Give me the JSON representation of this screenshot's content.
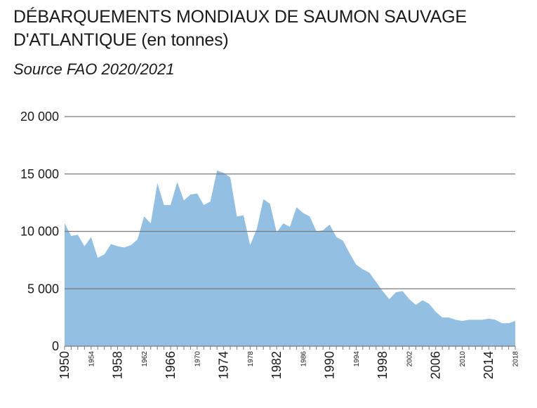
{
  "header": {
    "title_line1": "DÉBARQUEMENTS MONDIAUX DE SAUMON SAUVAGE",
    "title_line2": "D'ATLANTIQUE (en tonnes)",
    "source": "Source FAO 2020/2021"
  },
  "colors": {
    "area": "#93bfe2",
    "grid": "#7a7a7a",
    "text": "#1a1a1a"
  },
  "chart_data": {
    "type": "area",
    "title": "DÉBARQUEMENTS MONDIAUX DE SAUMON SAUVAGE D'ATLANTIQUE (en tonnes)",
    "subtitle": "Source FAO 2020/2021",
    "xlabel": "",
    "ylabel": "",
    "xlim": [
      1950,
      2018
    ],
    "ylim": [
      0,
      20000
    ],
    "grid": true,
    "y_ticks": [
      {
        "value": 0,
        "label": "0"
      },
      {
        "value": 5000,
        "label": "5 000"
      },
      {
        "value": 10000,
        "label": "10 000"
      },
      {
        "value": 15000,
        "label": "15 000"
      },
      {
        "value": 20000,
        "label": "20 000"
      }
    ],
    "x_ticks": [
      {
        "value": 1950,
        "label": "1950",
        "size": "large"
      },
      {
        "value": 1954,
        "label": "1954",
        "size": "small"
      },
      {
        "value": 1958,
        "label": "1958",
        "size": "large"
      },
      {
        "value": 1962,
        "label": "1962",
        "size": "small"
      },
      {
        "value": 1966,
        "label": "1966",
        "size": "large"
      },
      {
        "value": 1970,
        "label": "1970",
        "size": "small"
      },
      {
        "value": 1974,
        "label": "1974",
        "size": "large"
      },
      {
        "value": 1978,
        "label": "1978",
        "size": "small"
      },
      {
        "value": 1982,
        "label": "1982",
        "size": "large"
      },
      {
        "value": 1986,
        "label": "1986",
        "size": "small"
      },
      {
        "value": 1990,
        "label": "1990",
        "size": "large"
      },
      {
        "value": 1994,
        "label": "1994",
        "size": "small"
      },
      {
        "value": 1998,
        "label": "1998",
        "size": "large"
      },
      {
        "value": 2002,
        "label": "2002",
        "size": "small"
      },
      {
        "value": 2006,
        "label": "2006",
        "size": "large"
      },
      {
        "value": 2010,
        "label": "2010",
        "size": "small"
      },
      {
        "value": 2014,
        "label": "2014",
        "size": "large"
      },
      {
        "value": 2018,
        "label": "2018",
        "size": "small"
      }
    ],
    "series": [
      {
        "x": [
          1950,
          1951,
          1952,
          1953,
          1954,
          1955,
          1956,
          1957,
          1958,
          1959,
          1960,
          1961,
          1962,
          1963,
          1964,
          1965,
          1966,
          1967,
          1968,
          1969,
          1970,
          1971,
          1972,
          1973,
          1974,
          1975,
          1976,
          1977,
          1978,
          1979,
          1980,
          1981,
          1982,
          1983,
          1984,
          1985,
          1986,
          1987,
          1988,
          1989,
          1990,
          1991,
          1992,
          1993,
          1994,
          1995,
          1996,
          1997,
          1998,
          1999,
          2000,
          2001,
          2002,
          2003,
          2004,
          2005,
          2006,
          2007,
          2008,
          2009,
          2010,
          2011,
          2012,
          2013,
          2014,
          2015,
          2016,
          2017,
          2018
        ],
        "values": [
          10700,
          9600,
          9700,
          8700,
          9500,
          7700,
          8000,
          8900,
          8700,
          8600,
          8800,
          9300,
          11300,
          10700,
          14200,
          12300,
          12300,
          14300,
          12700,
          13200,
          13300,
          12300,
          12600,
          15300,
          15100,
          14700,
          11300,
          11400,
          8800,
          10200,
          12800,
          12400,
          9900,
          10700,
          10400,
          12100,
          11600,
          11300,
          10000,
          10100,
          10600,
          9500,
          9200,
          8100,
          7100,
          6700,
          6400,
          5600,
          4800,
          4100,
          4700,
          4800,
          4100,
          3600,
          4000,
          3700,
          3000,
          2500,
          2500,
          2300,
          2200,
          2300,
          2300,
          2300,
          2400,
          2300,
          2000,
          2000,
          2200
        ]
      }
    ]
  }
}
